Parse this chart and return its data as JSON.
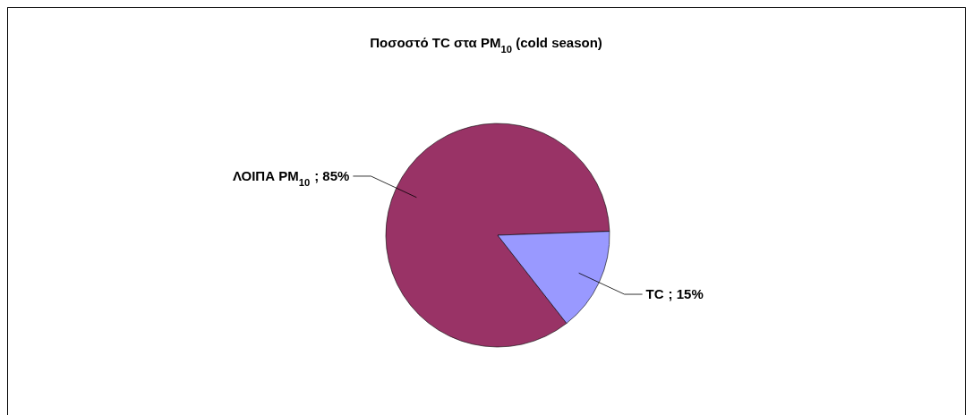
{
  "chart_data": {
    "type": "pie",
    "title": "Ποσοστό TC στα PM$_{10}$ (cold season)",
    "categories": [
      "ΛΟΙΠΑ PM$_{10}$",
      "TC"
    ],
    "values": [
      85,
      15
    ],
    "value_labels": [
      "; 85%",
      "; 15%"
    ],
    "colors": [
      "#993366",
      "#9999ff"
    ]
  }
}
